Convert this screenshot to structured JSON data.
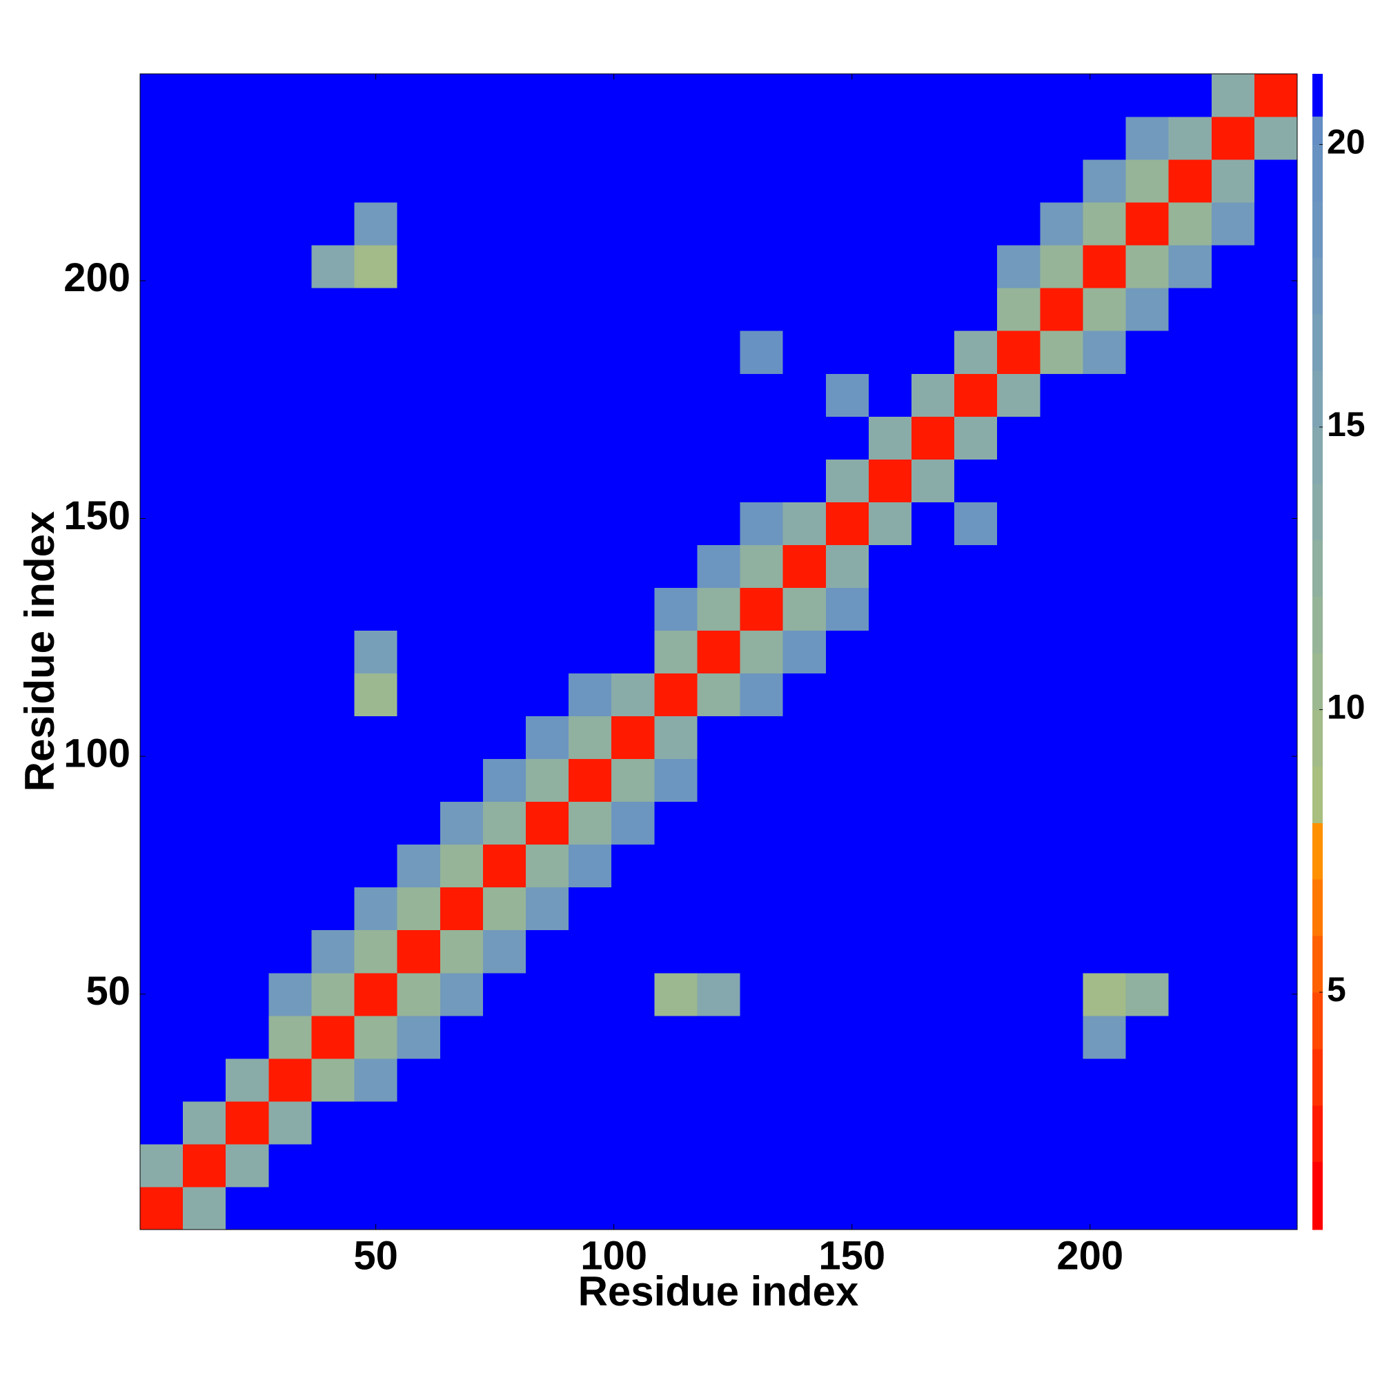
{
  "chart_data": {
    "type": "heatmap",
    "x_label": "Residue index",
    "y_label": "Residue index",
    "x": [
      5,
      14,
      23,
      32,
      41,
      50,
      59,
      68,
      77,
      86,
      95,
      104,
      113,
      122,
      131,
      140,
      149,
      158,
      167,
      176,
      185,
      194,
      203,
      212,
      221,
      230,
      239
    ],
    "y": [
      5,
      14,
      23,
      32,
      41,
      50,
      59,
      68,
      77,
      86,
      95,
      104,
      113,
      122,
      131,
      140,
      149,
      158,
      167,
      176,
      185,
      194,
      203,
      212,
      221,
      230,
      239
    ],
    "cell_size": 9,
    "xlim": [
      0.5,
      243.5
    ],
    "ylim": [
      0.5,
      243.5
    ],
    "xticks": [
      50,
      100,
      150,
      200
    ],
    "yticks": [
      50,
      100,
      150,
      200
    ],
    "z": [
      [
        2,
        13,
        21,
        21,
        21,
        21,
        21,
        21,
        21,
        21,
        21,
        21,
        21,
        21,
        21,
        21,
        21,
        21,
        21,
        21,
        21,
        21,
        21,
        21,
        21,
        21,
        21
      ],
      [
        13,
        2,
        13,
        21,
        21,
        21,
        21,
        21,
        21,
        21,
        21,
        21,
        21,
        21,
        21,
        21,
        21,
        21,
        21,
        21,
        21,
        21,
        21,
        21,
        21,
        21,
        21
      ],
      [
        21,
        13,
        2,
        13,
        21,
        21,
        21,
        21,
        21,
        21,
        21,
        21,
        21,
        21,
        21,
        21,
        21,
        21,
        21,
        21,
        21,
        21,
        21,
        21,
        21,
        21,
        21
      ],
      [
        21,
        21,
        13,
        2,
        11,
        17,
        21,
        21,
        21,
        21,
        21,
        21,
        21,
        21,
        21,
        21,
        21,
        21,
        21,
        21,
        21,
        21,
        21,
        21,
        21,
        21,
        21
      ],
      [
        21,
        21,
        21,
        11,
        2,
        11,
        17,
        21,
        21,
        21,
        21,
        21,
        21,
        21,
        21,
        21,
        21,
        21,
        21,
        21,
        21,
        21,
        17,
        21,
        21,
        21,
        21
      ],
      [
        21,
        21,
        21,
        17,
        11,
        2,
        11,
        17,
        21,
        21,
        21,
        21,
        10,
        14,
        21,
        21,
        21,
        21,
        21,
        21,
        21,
        21,
        9,
        12,
        21,
        21,
        21
      ],
      [
        21,
        21,
        21,
        21,
        17,
        11,
        2,
        11,
        17,
        21,
        21,
        21,
        21,
        21,
        21,
        21,
        21,
        21,
        21,
        21,
        21,
        21,
        21,
        21,
        21,
        21,
        21
      ],
      [
        21,
        21,
        21,
        21,
        21,
        17,
        11,
        2,
        11,
        17,
        21,
        21,
        21,
        21,
        21,
        21,
        21,
        21,
        21,
        21,
        21,
        21,
        21,
        21,
        21,
        21,
        21
      ],
      [
        21,
        21,
        21,
        21,
        21,
        21,
        17,
        11,
        2,
        12,
        18,
        21,
        21,
        21,
        21,
        21,
        21,
        21,
        21,
        21,
        21,
        21,
        21,
        21,
        21,
        21,
        21
      ],
      [
        21,
        21,
        21,
        21,
        21,
        21,
        21,
        17,
        12,
        2,
        12,
        18,
        21,
        21,
        21,
        21,
        21,
        21,
        21,
        21,
        21,
        21,
        21,
        21,
        21,
        21,
        21
      ],
      [
        21,
        21,
        21,
        21,
        21,
        21,
        21,
        21,
        18,
        12,
        2,
        12,
        18,
        21,
        21,
        21,
        21,
        21,
        21,
        21,
        21,
        21,
        21,
        21,
        21,
        21,
        21
      ],
      [
        21,
        21,
        21,
        21,
        21,
        21,
        21,
        21,
        21,
        18,
        12,
        2,
        13,
        21,
        21,
        21,
        21,
        21,
        21,
        21,
        21,
        21,
        21,
        21,
        21,
        21,
        21
      ],
      [
        21,
        21,
        21,
        21,
        21,
        10,
        21,
        21,
        21,
        21,
        18,
        13,
        2,
        12,
        18,
        21,
        21,
        21,
        21,
        21,
        21,
        21,
        21,
        21,
        21,
        21,
        21
      ],
      [
        21,
        21,
        21,
        21,
        21,
        16,
        21,
        21,
        21,
        21,
        21,
        21,
        12,
        2,
        12,
        18,
        21,
        21,
        21,
        21,
        21,
        21,
        21,
        21,
        21,
        21,
        21
      ],
      [
        21,
        21,
        21,
        21,
        21,
        21,
        21,
        21,
        21,
        21,
        21,
        21,
        18,
        12,
        2,
        12,
        18,
        21,
        21,
        21,
        21,
        21,
        21,
        21,
        21,
        21,
        21
      ],
      [
        21,
        21,
        21,
        21,
        21,
        21,
        21,
        21,
        21,
        21,
        21,
        21,
        21,
        18,
        12,
        2,
        13,
        21,
        21,
        21,
        21,
        21,
        21,
        21,
        21,
        21,
        21
      ],
      [
        21,
        21,
        21,
        21,
        21,
        21,
        21,
        21,
        21,
        21,
        21,
        21,
        21,
        21,
        18,
        13,
        2,
        13,
        21,
        18,
        21,
        21,
        21,
        21,
        21,
        21,
        21
      ],
      [
        21,
        21,
        21,
        21,
        21,
        21,
        21,
        21,
        21,
        21,
        21,
        21,
        21,
        21,
        21,
        21,
        13,
        2,
        13,
        21,
        21,
        21,
        21,
        21,
        21,
        21,
        21
      ],
      [
        21,
        21,
        21,
        21,
        21,
        21,
        21,
        21,
        21,
        21,
        21,
        21,
        21,
        21,
        21,
        21,
        21,
        13,
        2,
        13,
        21,
        21,
        21,
        21,
        21,
        21,
        21
      ],
      [
        21,
        21,
        21,
        21,
        21,
        21,
        21,
        21,
        21,
        21,
        21,
        21,
        21,
        21,
        21,
        21,
        18,
        21,
        13,
        2,
        13,
        21,
        21,
        21,
        21,
        21,
        21
      ],
      [
        21,
        21,
        21,
        21,
        21,
        21,
        21,
        21,
        21,
        21,
        21,
        21,
        21,
        21,
        19,
        21,
        21,
        21,
        21,
        13,
        2,
        11,
        17,
        21,
        21,
        21,
        21
      ],
      [
        21,
        21,
        21,
        21,
        21,
        21,
        21,
        21,
        21,
        21,
        21,
        21,
        21,
        21,
        21,
        21,
        21,
        21,
        21,
        21,
        11,
        2,
        11,
        17,
        21,
        21,
        21
      ],
      [
        21,
        21,
        21,
        21,
        14,
        9,
        21,
        21,
        21,
        21,
        21,
        21,
        21,
        21,
        21,
        21,
        21,
        21,
        21,
        21,
        17,
        11,
        2,
        11,
        17,
        21,
        21
      ],
      [
        21,
        21,
        21,
        21,
        21,
        17,
        21,
        21,
        21,
        21,
        21,
        21,
        21,
        21,
        21,
        21,
        21,
        21,
        21,
        21,
        21,
        17,
        11,
        2,
        11,
        17,
        21
      ],
      [
        21,
        21,
        21,
        21,
        21,
        21,
        21,
        21,
        21,
        21,
        21,
        21,
        21,
        21,
        21,
        21,
        21,
        21,
        21,
        21,
        21,
        21,
        17,
        11,
        2,
        13,
        21
      ],
      [
        21,
        21,
        21,
        21,
        21,
        21,
        21,
        21,
        21,
        21,
        21,
        21,
        21,
        21,
        21,
        21,
        21,
        21,
        21,
        21,
        21,
        21,
        21,
        17,
        13,
        2,
        13
      ],
      [
        21,
        21,
        21,
        21,
        21,
        21,
        21,
        21,
        21,
        21,
        21,
        21,
        21,
        21,
        21,
        21,
        21,
        21,
        21,
        21,
        21,
        21,
        21,
        21,
        21,
        13,
        2
      ]
    ],
    "colorbar": {
      "bounds": [
        0.8,
        2,
        3,
        4,
        5,
        6,
        7,
        8,
        9,
        10,
        11,
        12,
        13,
        14,
        15,
        16,
        17,
        18,
        19,
        20,
        20.5,
        21.25
      ],
      "colors": [
        "#ff0000",
        "#ff1a00",
        "#ff3300",
        "#ff4800",
        "#ff6000",
        "#ff7800",
        "#ff9000",
        "#a8bf80",
        "#a2bb88",
        "#9cb890",
        "#96b498",
        "#90b0a0",
        "#8aaca8",
        "#84a8ae",
        "#7ea4b4",
        "#789fb8",
        "#729abc",
        "#6c96c0",
        "#6892c2",
        "#648ec4",
        "#0000ff"
      ],
      "ylim": [
        0.8,
        21.25
      ],
      "yticks": [
        5,
        10,
        15,
        20
      ]
    }
  }
}
